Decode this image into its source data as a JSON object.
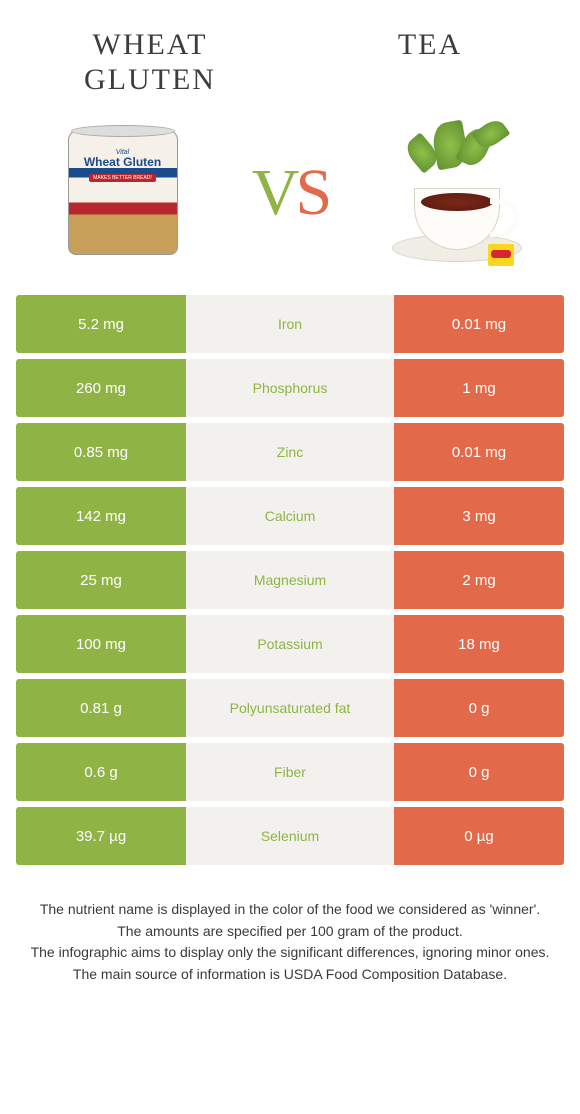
{
  "colors": {
    "left": "#90b346",
    "right": "#e26a4a",
    "mid_bg": "#f3f1ee",
    "text_dark": "#3d3d3d"
  },
  "header": {
    "left_title": "Wheat gluten",
    "right_title": "Tea"
  },
  "vs": {
    "v": "V",
    "s": "S"
  },
  "product_left": {
    "line1": "Vital",
    "line2": "Wheat Gluten",
    "line3": "MAKES BETTER BREAD!"
  },
  "rows": [
    {
      "left": "5.2 mg",
      "label": "Iron",
      "right": "0.01 mg",
      "winner": "left"
    },
    {
      "left": "260 mg",
      "label": "Phosphorus",
      "right": "1 mg",
      "winner": "left"
    },
    {
      "left": "0.85 mg",
      "label": "Zinc",
      "right": "0.01 mg",
      "winner": "left"
    },
    {
      "left": "142 mg",
      "label": "Calcium",
      "right": "3 mg",
      "winner": "left"
    },
    {
      "left": "25 mg",
      "label": "Magnesium",
      "right": "2 mg",
      "winner": "left"
    },
    {
      "left": "100 mg",
      "label": "Potassium",
      "right": "18 mg",
      "winner": "left"
    },
    {
      "left": "0.81 g",
      "label": "Polyunsaturated fat",
      "right": "0 g",
      "winner": "left"
    },
    {
      "left": "0.6 g",
      "label": "Fiber",
      "right": "0 g",
      "winner": "left"
    },
    {
      "left": "39.7 µg",
      "label": "Selenium",
      "right": "0 µg",
      "winner": "left"
    }
  ],
  "footer": {
    "p1": "The nutrient name is displayed in the color of the food we considered as 'winner'.",
    "p2": "The amounts are specified per 100 gram of the product.",
    "p3": "The infographic aims to display only the significant differences, ignoring minor ones.",
    "p4": "The main source of information is USDA Food Composition Database."
  }
}
